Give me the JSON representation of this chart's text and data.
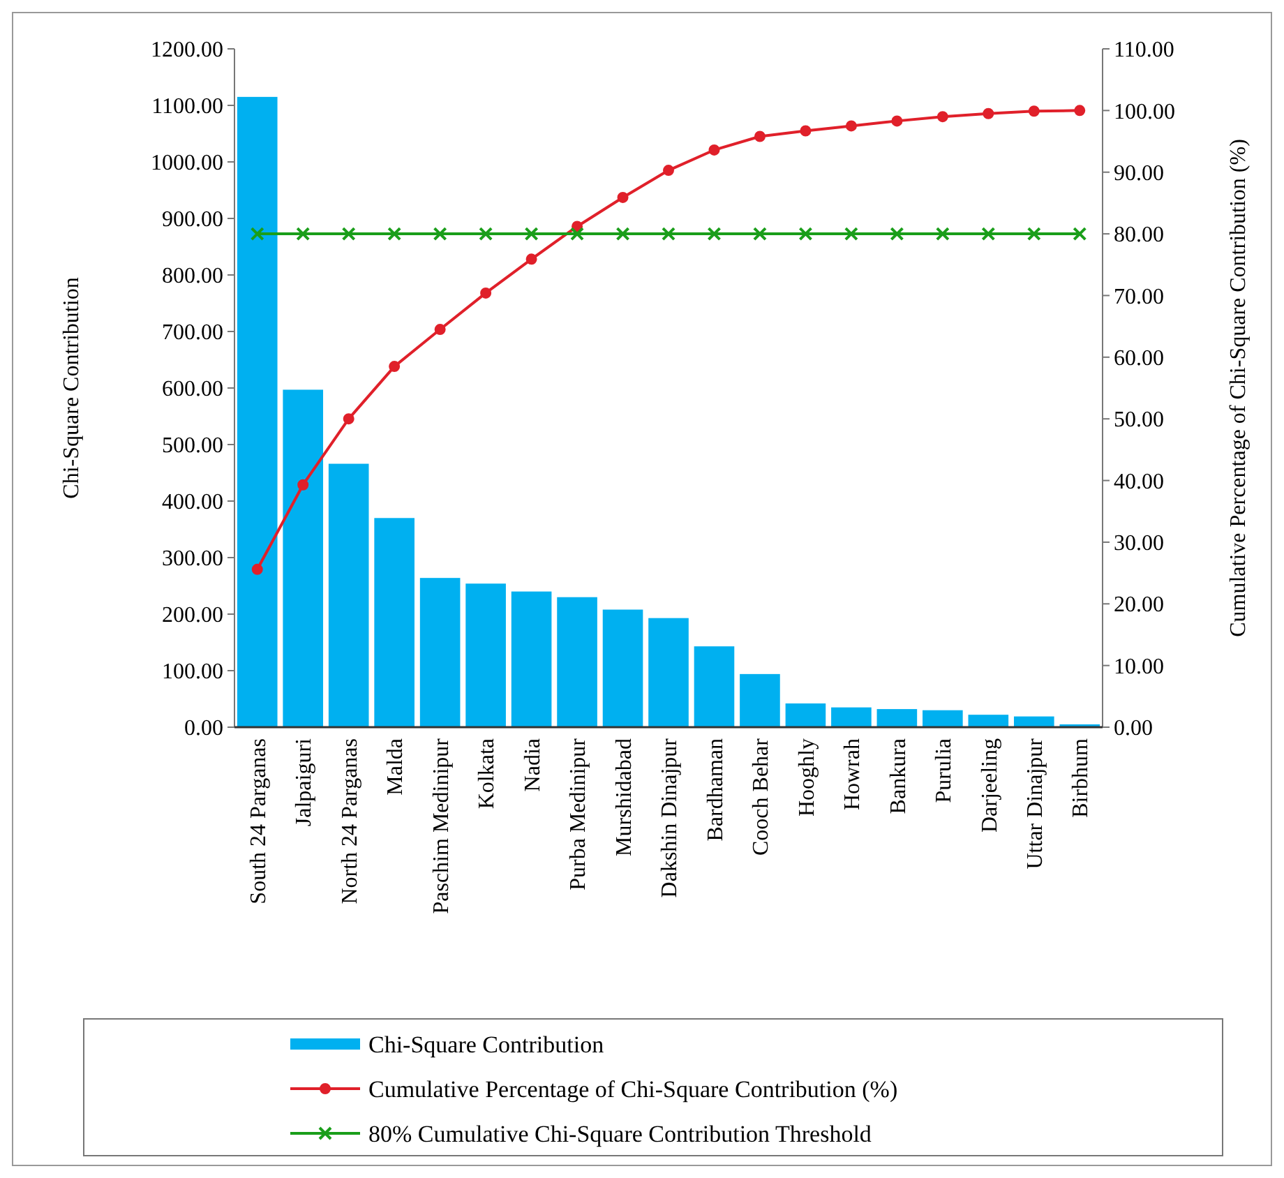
{
  "chart_data": {
    "type": "bar",
    "ylabel": "Chi-Square Contribution",
    "y2label": "Cumulative Percentage of Chi-Square Contribution (%)",
    "categories": [
      "South 24 Parganas",
      "Jalpaiguri",
      "North 24 Parganas",
      "Malda",
      "Paschim Medinipur",
      "Kolkata",
      "Nadia",
      "Purba Medinipur",
      "Murshidabad",
      "Dakshin Dinajpur",
      "Bardhaman",
      "Cooch Behar",
      "Hooghly",
      "Howrah",
      "Bankura",
      "Purulia",
      "Darjeeling",
      "Uttar Dinajpur",
      "Birbhum"
    ],
    "series": [
      {
        "name": "Chi-Square Contribution",
        "color": "#00b0f0",
        "values": [
          1115,
          597,
          466,
          370,
          264,
          254,
          240,
          230,
          208,
          193,
          143,
          94,
          42,
          35,
          32,
          30,
          22,
          19,
          5
        ]
      },
      {
        "name": "Cumulative Percentage of Chi-Square Contribution (%)",
        "type": "line",
        "axis": "y2",
        "color": "#e0202a",
        "marker": "circle",
        "values": [
          25.6,
          39.3,
          50.0,
          58.5,
          64.5,
          70.4,
          75.9,
          81.2,
          85.9,
          90.3,
          93.6,
          95.8,
          96.7,
          97.5,
          98.3,
          99.0,
          99.5,
          99.9,
          100
        ]
      },
      {
        "name": "80% Cumulative Chi-Square Contribution Threshold",
        "type": "line",
        "axis": "y2",
        "color": "#1a9e1a",
        "marker": "cross",
        "values": [
          80,
          80,
          80,
          80,
          80,
          80,
          80,
          80,
          80,
          80,
          80,
          80,
          80,
          80,
          80,
          80,
          80,
          80,
          80
        ]
      }
    ],
    "ylim": [
      0,
      1200
    ],
    "yticks": [
      {
        "value": 0,
        "label": "0.00"
      },
      {
        "value": 100,
        "label": "100.00"
      },
      {
        "value": 200,
        "label": "200.00"
      },
      {
        "value": 300,
        "label": "300.00"
      },
      {
        "value": 400,
        "label": "400.00"
      },
      {
        "value": 500,
        "label": "500.00"
      },
      {
        "value": 600,
        "label": "600.00"
      },
      {
        "value": 700,
        "label": "700.00"
      },
      {
        "value": 800,
        "label": "800.00"
      },
      {
        "value": 900,
        "label": "900.00"
      },
      {
        "value": 1000,
        "label": "1000.00"
      },
      {
        "value": 1100,
        "label": "1100.00"
      },
      {
        "value": 1200,
        "label": "1200.00"
      }
    ],
    "y2lim": [
      0,
      110
    ],
    "y2ticks": [
      {
        "value": 0,
        "label": "0.00"
      },
      {
        "value": 10,
        "label": "10.00"
      },
      {
        "value": 20,
        "label": "20.00"
      },
      {
        "value": 30,
        "label": "30.00"
      },
      {
        "value": 40,
        "label": "40.00"
      },
      {
        "value": 50,
        "label": "50.00"
      },
      {
        "value": 60,
        "label": "60.00"
      },
      {
        "value": 70,
        "label": "70.00"
      },
      {
        "value": 80,
        "label": "80.00"
      },
      {
        "value": 90,
        "label": "90.00"
      },
      {
        "value": 100,
        "label": "100.00"
      },
      {
        "value": 110,
        "label": "110.00"
      }
    ],
    "grid": false,
    "legend": "bottom"
  }
}
